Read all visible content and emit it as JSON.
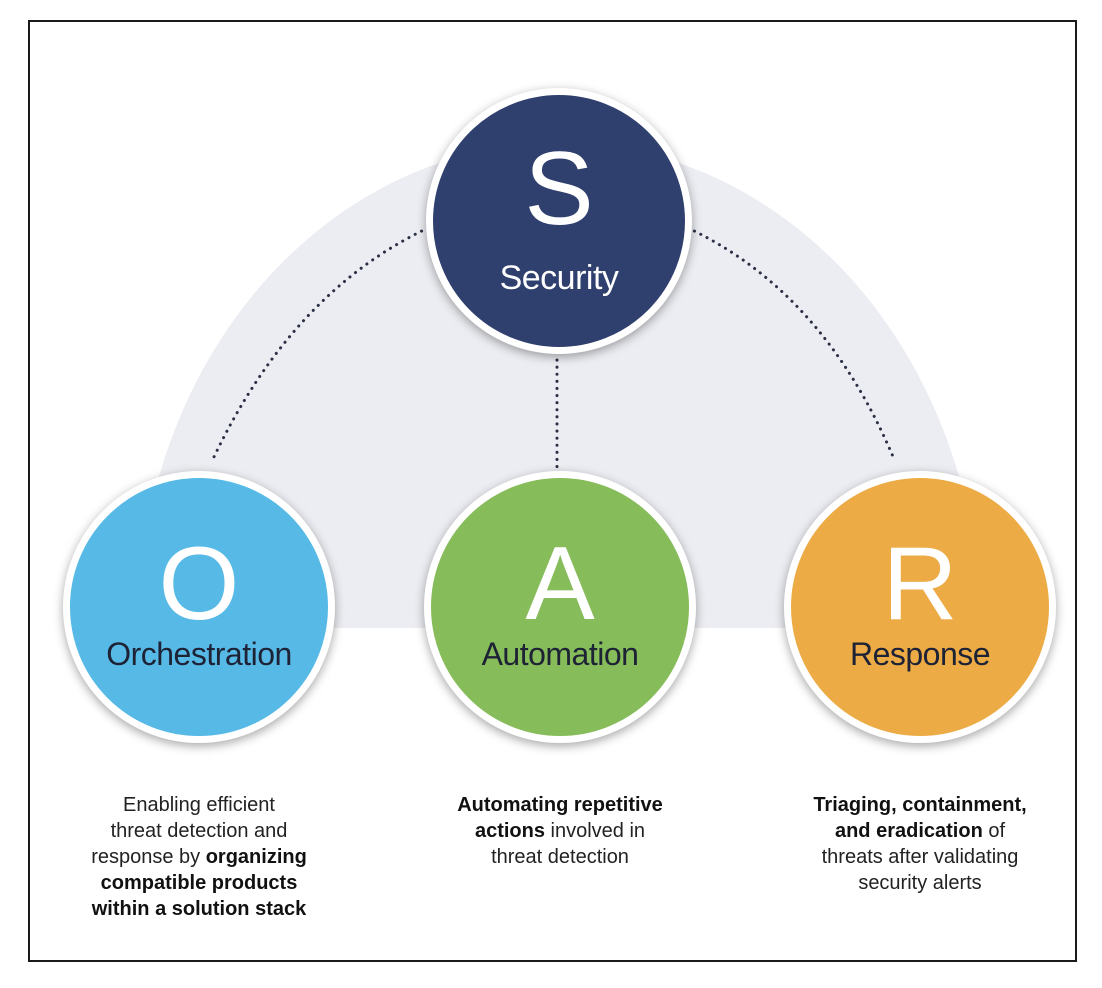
{
  "diagram": {
    "nodes": [
      {
        "id": "s",
        "letter": "S",
        "label": "Security",
        "color": "#2f3f6e"
      },
      {
        "id": "o",
        "letter": "O",
        "label": "Orchestration",
        "color": "#56b9e6"
      },
      {
        "id": "a",
        "letter": "A",
        "label": "Automation",
        "color": "#86bc5a"
      },
      {
        "id": "r",
        "letter": "R",
        "label": "Response",
        "color": "#ecab45"
      }
    ],
    "edges": [
      {
        "from": "s",
        "to": "o",
        "style": "dotted"
      },
      {
        "from": "s",
        "to": "a",
        "style": "dotted"
      },
      {
        "from": "s",
        "to": "r",
        "style": "dotted"
      }
    ],
    "descriptions": {
      "o": {
        "l1": "Enabling efficient",
        "l2": "threat detection and",
        "l3a": "response by ",
        "l3b": "organizing",
        "l4": "compatible products",
        "l5": "within a solution stack"
      },
      "a": {
        "l1": "Automating repetitive",
        "l2a": "actions",
        "l2b": " involved in",
        "l3": "threat detection"
      },
      "r": {
        "l1": "Triaging, containment,",
        "l2a": "and eradication",
        "l2b": " of",
        "l3": "threats after validating",
        "l4": "security alerts"
      }
    }
  },
  "colors": {
    "arc": "#ecedf2",
    "dots": "#2b2f45",
    "frame": "#1a1a1a"
  }
}
